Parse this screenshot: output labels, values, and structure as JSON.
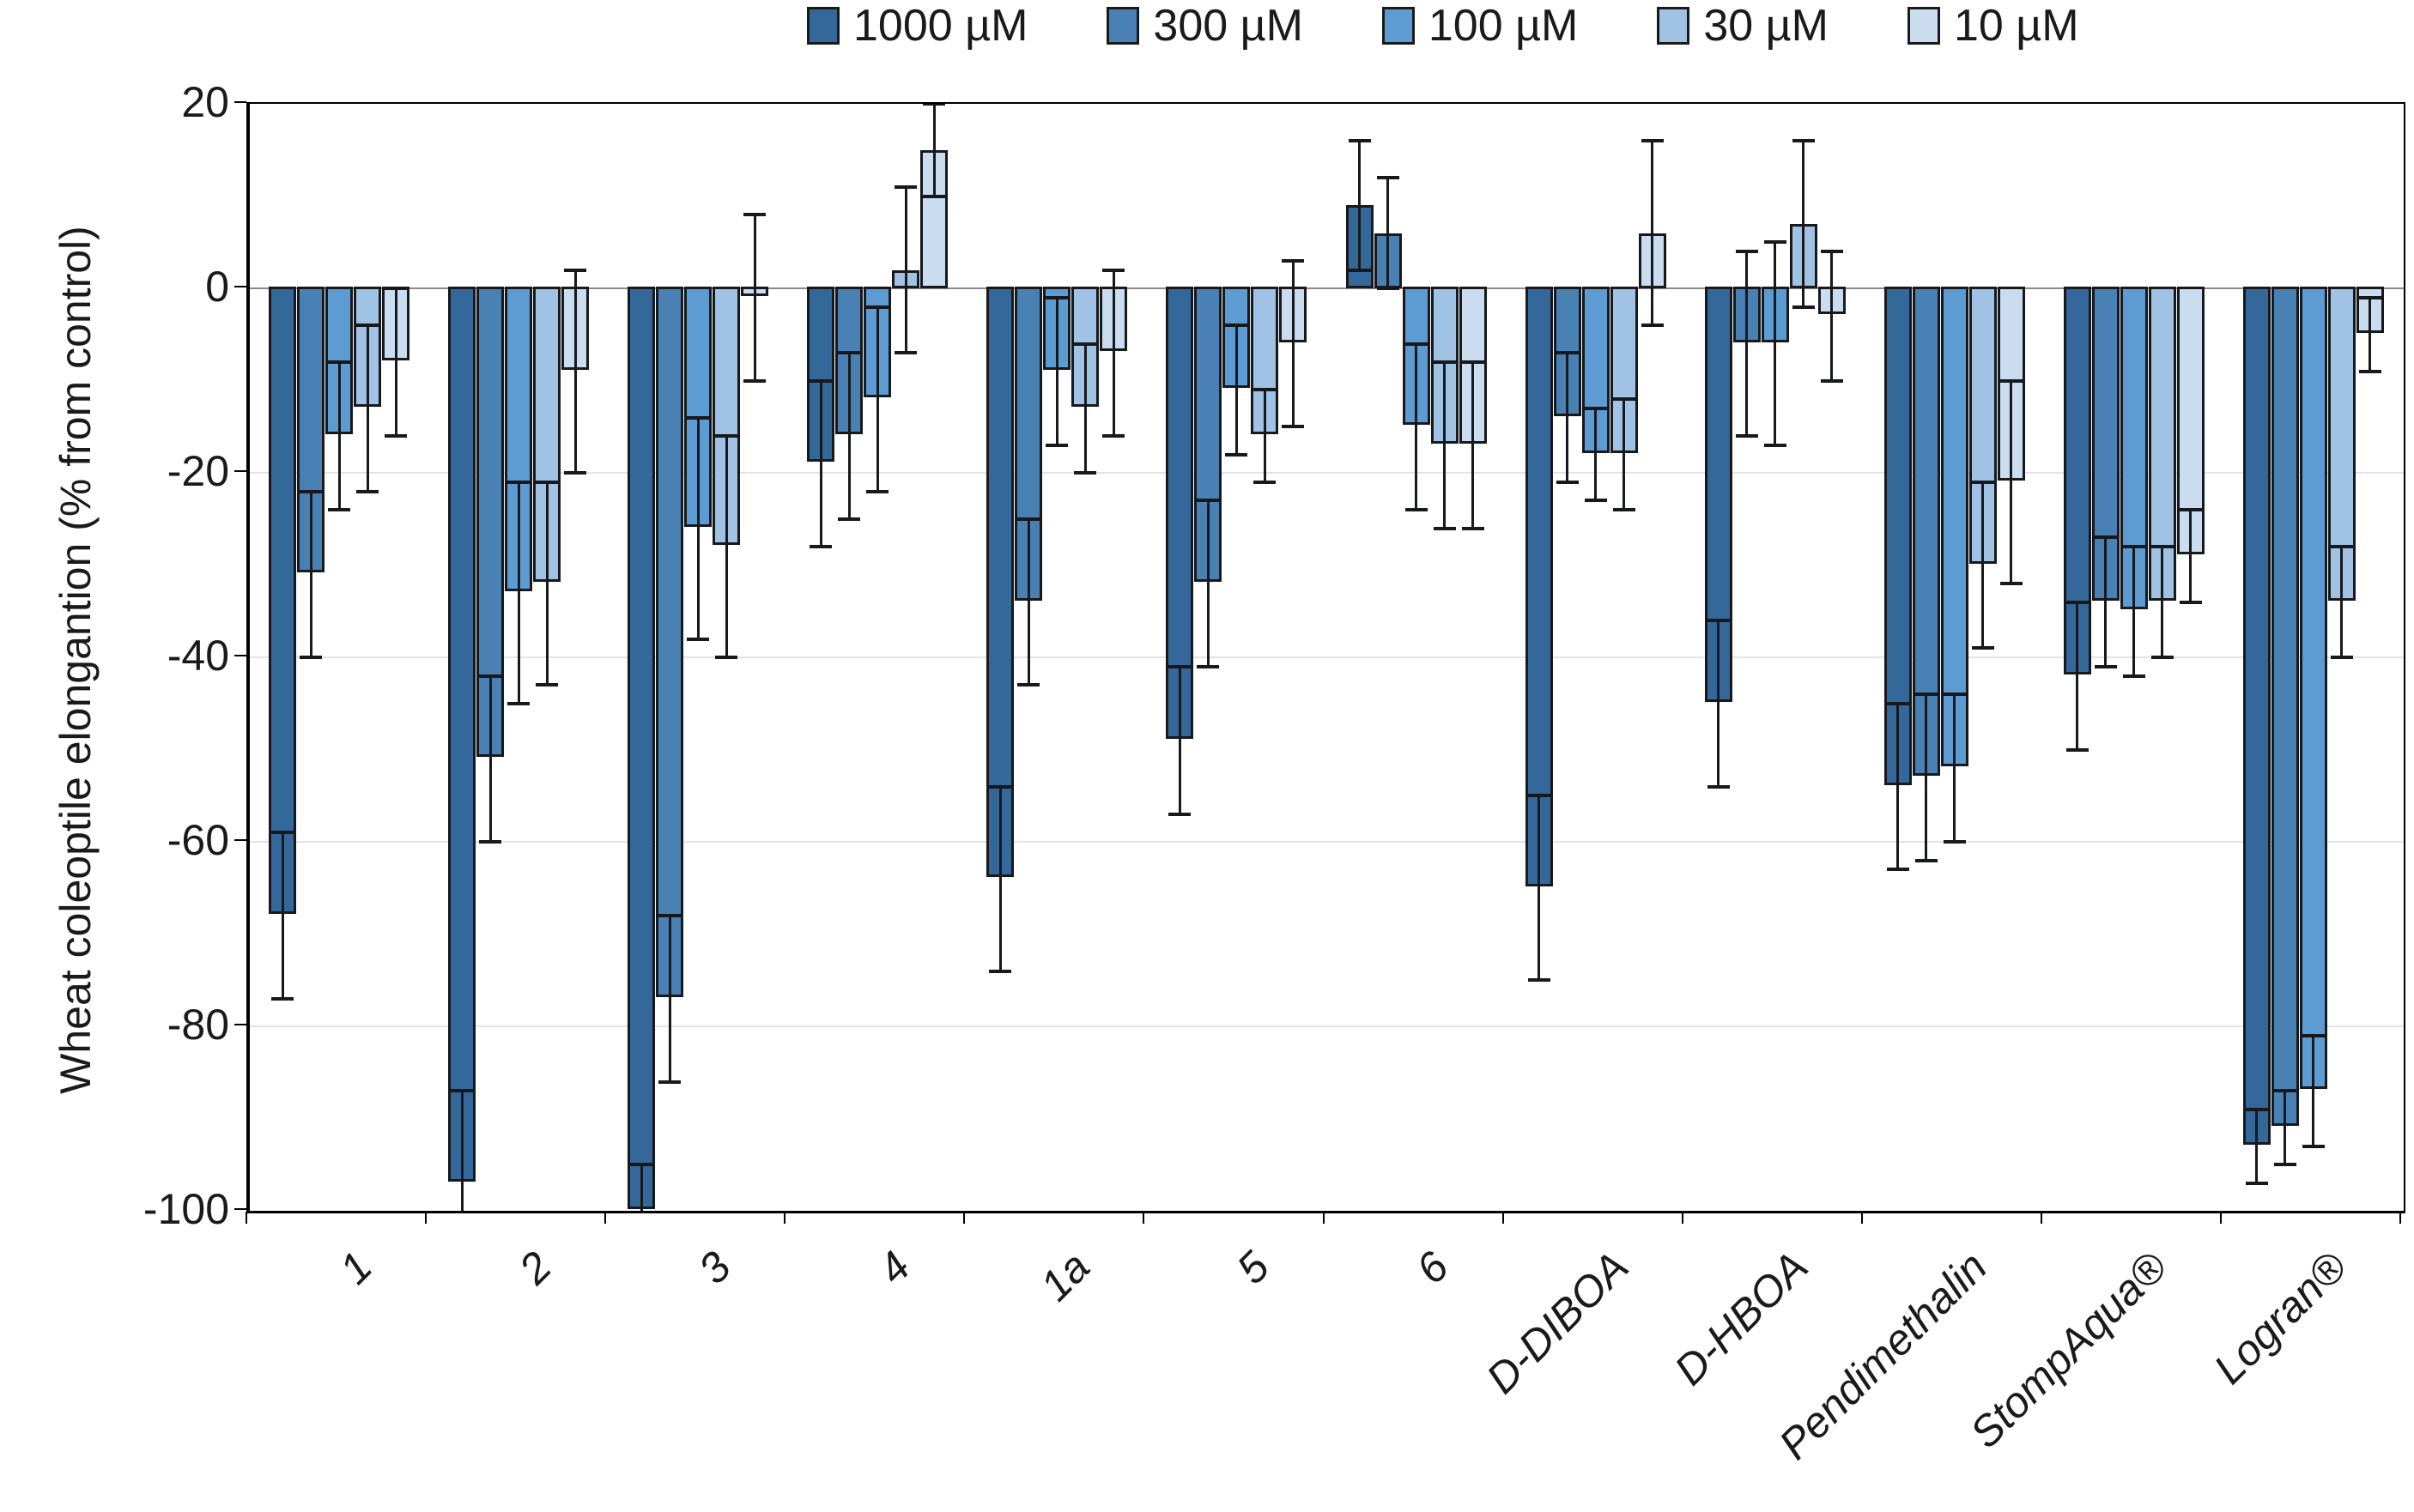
{
  "legend": {
    "items": [
      {
        "label": "1000 µM",
        "color": "#35689A"
      },
      {
        "label": "300 µM",
        "color": "#4A81B5"
      },
      {
        "label": "100 µM",
        "color": "#5D9BD3"
      },
      {
        "label": "30 µM",
        "color": "#A0C2E4"
      },
      {
        "label": "10 µM",
        "color": "#C9DCF0"
      }
    ]
  },
  "y_axis": {
    "title": "Wheat coleoptile elongantion (% from control)",
    "ticks": [
      {
        "value": 20,
        "label": "20"
      },
      {
        "value": 0,
        "label": "0"
      },
      {
        "value": -20,
        "label": "-20"
      },
      {
        "value": -40,
        "label": "-40"
      },
      {
        "value": -60,
        "label": "-60"
      },
      {
        "value": -80,
        "label": "-80"
      },
      {
        "value": -100,
        "label": "-100"
      }
    ]
  },
  "chart_data": {
    "type": "bar",
    "title": "",
    "xlabel": "",
    "ylabel": "Wheat coleoptile elongantion (% from control)",
    "ylim": [
      -100,
      20
    ],
    "grid": "horizontal",
    "legend_position": "top",
    "error_bars": true,
    "categories": [
      "1",
      "2",
      "3",
      "4",
      "1a",
      "5",
      "6",
      "D-DIBOA",
      "D-HBOA",
      "Pendimethalin",
      "StompAqua®",
      "Logran®"
    ],
    "series": [
      {
        "name": "1000 µM",
        "color": "#35689A",
        "values": [
          -68,
          -97,
          -100,
          -19,
          -64,
          -49,
          9,
          -65,
          -45,
          -54,
          -42,
          -93
        ],
        "errors": [
          9,
          10,
          5,
          9,
          10,
          8,
          7,
          10,
          9,
          9,
          8,
          4
        ]
      },
      {
        "name": "300 µM",
        "color": "#4A81B5",
        "values": [
          -31,
          -51,
          -77,
          -16,
          -34,
          -32,
          6,
          -14,
          -6,
          -53,
          -34,
          -91
        ],
        "errors": [
          9,
          9,
          9,
          9,
          9,
          9,
          6,
          7,
          10,
          9,
          7,
          4
        ]
      },
      {
        "name": "100 µM",
        "color": "#5D9BD3",
        "values": [
          -16,
          -33,
          -26,
          -12,
          -9,
          -11,
          -15,
          -18,
          -6,
          -52,
          -35,
          -87
        ],
        "errors": [
          8,
          12,
          12,
          10,
          8,
          7,
          9,
          5,
          11,
          8,
          7,
          6
        ]
      },
      {
        "name": "30 µM",
        "color": "#A0C2E4",
        "values": [
          -13,
          -32,
          -28,
          2,
          -13,
          -16,
          -17,
          -18,
          7,
          -30,
          -34,
          -34
        ],
        "errors": [
          9,
          11,
          12,
          9,
          7,
          5,
          9,
          6,
          9,
          9,
          6,
          6
        ]
      },
      {
        "name": "10 µM",
        "color": "#C9DCF0",
        "values": [
          -8,
          -9,
          -1,
          15,
          -7,
          -6,
          -17,
          6,
          -3,
          -21,
          -29,
          -5
        ],
        "errors": [
          8,
          11,
          9,
          5,
          9,
          9,
          9,
          10,
          7,
          11,
          5,
          4
        ]
      }
    ]
  }
}
